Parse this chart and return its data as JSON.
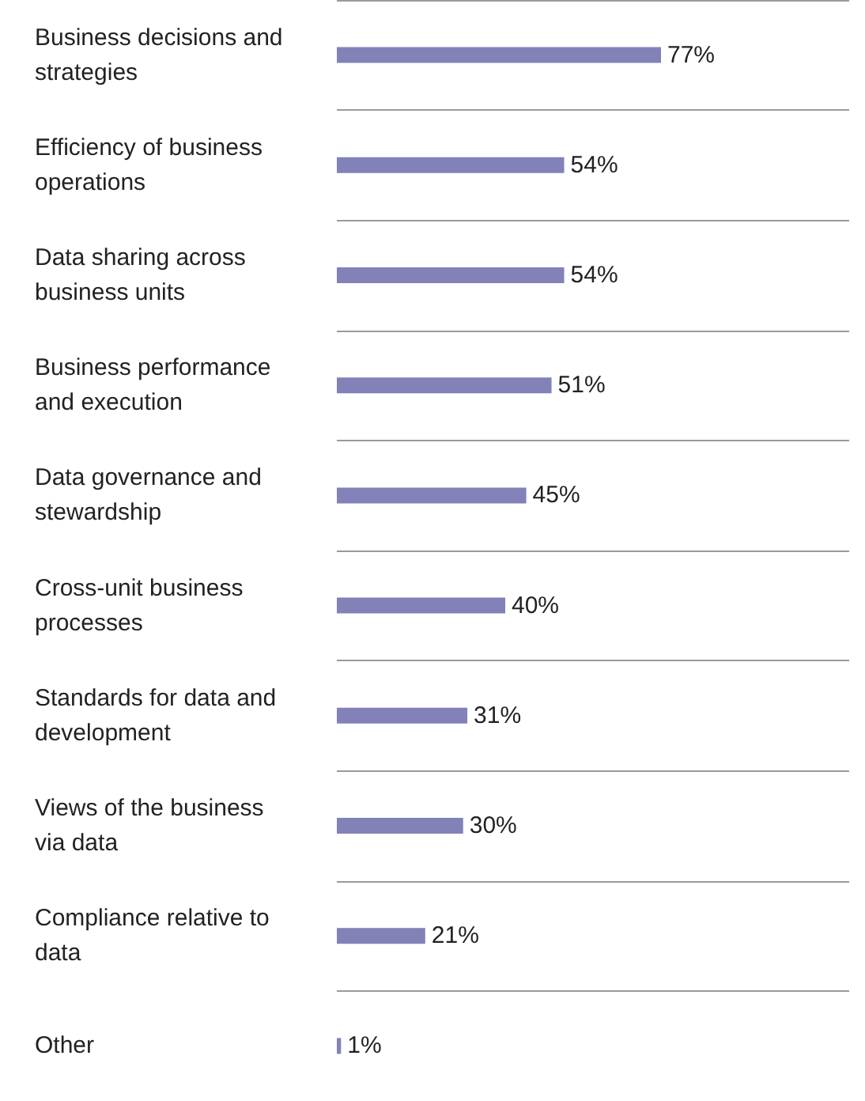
{
  "chart_data": {
    "type": "bar",
    "orientation": "horizontal",
    "categories": [
      "Business decisions and strategies",
      "Efficiency of business operations",
      "Data sharing across business units",
      "Business performance and execution",
      "Data governance and stewardship",
      "Cross-unit business processes",
      "Standards for data and development",
      "Views of the business via data",
      "Compliance relative to data",
      "Other"
    ],
    "values": [
      77,
      54,
      54,
      51,
      45,
      40,
      31,
      30,
      21,
      1
    ],
    "value_labels": [
      "77%",
      "54%",
      "54%",
      "51%",
      "45%",
      "40%",
      "31%",
      "30%",
      "21%",
      "1%"
    ],
    "color": "#8282b8",
    "grid": "y"
  }
}
